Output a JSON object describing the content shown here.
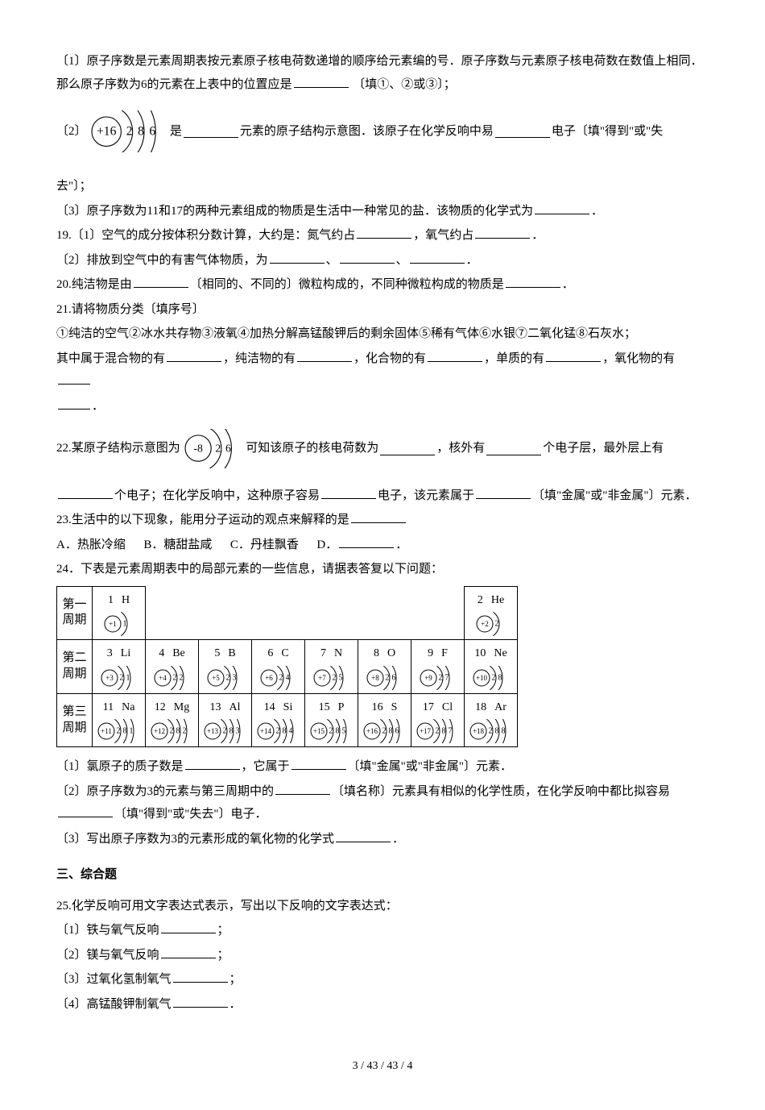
{
  "q18": {
    "p1": "〔1〕原子序数是元素周期表按元素原子核电荷数递增的顺序给元素编的号．原子序数与元素原子核电荷数在数值上相同．那么原子序数为6的元素在上表中的位置应是",
    "p1_suffix": "〔填①、②或③〕；",
    "p2_prefix": "〔2〕",
    "p2_mid": "是",
    "p2_after": "元素的原子结构示意图．该原子在化学反响中易",
    "p2_suffix": "电子〔填\"得到\"或\"失",
    "p3_prefix": "去\"〕；",
    "p4_a": "〔3〕原子序数为11和17的两种元素组成的物质是生活中一种常见的盐．该物质的化学式为",
    "p4_b": "．",
    "atom": {
      "nucleus": "+16",
      "shells": [
        "2",
        "8",
        "6"
      ]
    }
  },
  "q19": {
    "p1_a": "19.〔1〕空气的成分按体积分数计算，大约是：氮气约占",
    "p1_b": "，氧气约占",
    "p1_c": "．",
    "p2_a": "〔2〕排放到空气中的有害气体物质，为",
    "p2_sep": "、",
    "p2_end": "．"
  },
  "q20": {
    "a": "20.纯洁物是由",
    "b": "〔相同的、不同的〕微粒构成的，不同种微粒构成的物质是",
    "c": "．"
  },
  "q21": {
    "head": "21.请将物质分类〔填序号〕",
    "list": "①纯洁的空气②冰水共存物③液氧④加热分解高锰酸钾后的剩余固体⑤稀有气体⑥水银⑦二氧化锰⑧石灰水；",
    "a": "其中属于混合物的有",
    "b": "，纯洁物的有",
    "c": "，化合物的有",
    "d": "，单质的有",
    "e": "，氧化物的有",
    "end": "．"
  },
  "q22": {
    "a": "22.某原子结构示意图为",
    "b": "可知该原子的核电荷数为",
    "c": "，核外有",
    "d": "个电子层，最外层上有",
    "e": "个电子；在化学反响中，这种原子容易",
    "f": "电子，该元素属于",
    "g": "〔填\"金属\"或\"非金属\"〕元素．",
    "atom": {
      "nucleus": "-8",
      "shells": [
        "2",
        "6"
      ]
    }
  },
  "q23": {
    "a": "23.生活中的以下现象，能用分子运动的观点来解释的是",
    "optA": "A．热胀冷缩",
    "optB": "B．糖甜盐咸",
    "optC": "C．丹桂飘香",
    "optD_prefix": "D．",
    "optD_suffix": "．"
  },
  "q24": {
    "intro": "24．下表是元素周期表中的局部元素的一些信息，请据表答复以下问题：",
    "periods": [
      "第一周期",
      "第二周期",
      "第三周期"
    ],
    "row1": [
      {
        "num": "1",
        "sym": "H",
        "nuc": "+1",
        "sh": [
          "1"
        ]
      },
      null,
      null,
      null,
      null,
      null,
      null,
      {
        "num": "2",
        "sym": "He",
        "nuc": "+2",
        "sh": [
          "2"
        ]
      }
    ],
    "row2": [
      {
        "num": "3",
        "sym": "Li",
        "nuc": "+3",
        "sh": [
          "2",
          "1"
        ]
      },
      {
        "num": "4",
        "sym": "Be",
        "nuc": "+4",
        "sh": [
          "2",
          "2"
        ]
      },
      {
        "num": "5",
        "sym": "B",
        "nuc": "+5",
        "sh": [
          "2",
          "3"
        ]
      },
      {
        "num": "6",
        "sym": "C",
        "nuc": "+6",
        "sh": [
          "2",
          "4"
        ]
      },
      {
        "num": "7",
        "sym": "N",
        "nuc": "+7",
        "sh": [
          "2",
          "5"
        ]
      },
      {
        "num": "8",
        "sym": "O",
        "nuc": "+8",
        "sh": [
          "2",
          "6"
        ]
      },
      {
        "num": "9",
        "sym": "F",
        "nuc": "+9",
        "sh": [
          "2",
          "7"
        ]
      },
      {
        "num": "10",
        "sym": "Ne",
        "nuc": "+10",
        "sh": [
          "2",
          "8"
        ]
      }
    ],
    "row3": [
      {
        "num": "11",
        "sym": "Na",
        "nuc": "+11",
        "sh": [
          "2",
          "8",
          "1"
        ]
      },
      {
        "num": "12",
        "sym": "Mg",
        "nuc": "+12",
        "sh": [
          "2",
          "8",
          "2"
        ]
      },
      {
        "num": "13",
        "sym": "Al",
        "nuc": "+13",
        "sh": [
          "2",
          "8",
          "3"
        ]
      },
      {
        "num": "14",
        "sym": "Si",
        "nuc": "+14",
        "sh": [
          "2",
          "8",
          "4"
        ]
      },
      {
        "num": "15",
        "sym": "P",
        "nuc": "+15",
        "sh": [
          "2",
          "8",
          "5"
        ]
      },
      {
        "num": "16",
        "sym": "S",
        "nuc": "+16",
        "sh": [
          "2",
          "8",
          "6"
        ]
      },
      {
        "num": "17",
        "sym": "Cl",
        "nuc": "+17",
        "sh": [
          "2",
          "8",
          "7"
        ]
      },
      {
        "num": "18",
        "sym": "Ar",
        "nuc": "+18",
        "sh": [
          "2",
          "8",
          "8"
        ]
      }
    ],
    "sub1_a": "〔1〕氯原子的质子数是",
    "sub1_b": "，它属于",
    "sub1_c": "〔填\"金属\"或\"非金属\"〕元素．",
    "sub2_a": "〔2〕原子序数为3的元素与第三周期中的",
    "sub2_b": "〔填名称〕元素具有相似的化学性质，在化学反响中都比拟容易",
    "sub2_c": "〔填\"得到\"或\"失去\"〕电子．",
    "sub3_a": "〔3〕写出原子序数为3的元素形成的氧化物的化学式",
    "sub3_b": "．"
  },
  "section3": "三、综合题",
  "q25": {
    "intro": "25.化学反响可用文字表达式表示，写出以下反响的文字表达式：",
    "i1": "〔1〕铁与氧气反响",
    "i2": "〔2〕镁与氧气反响",
    "i3": "〔3〕过氧化氢制氧气",
    "i4": "〔4〕高锰酸钾制氧气",
    "semicolon": "；",
    "period": "．"
  },
  "footer": "3 / 43 / 43 / 4",
  "style": {
    "diagram_stroke": "#000",
    "diagram_stroke_width": 1.1,
    "cell_nucleus_r": 10,
    "cell_arc_spacing": 8
  }
}
